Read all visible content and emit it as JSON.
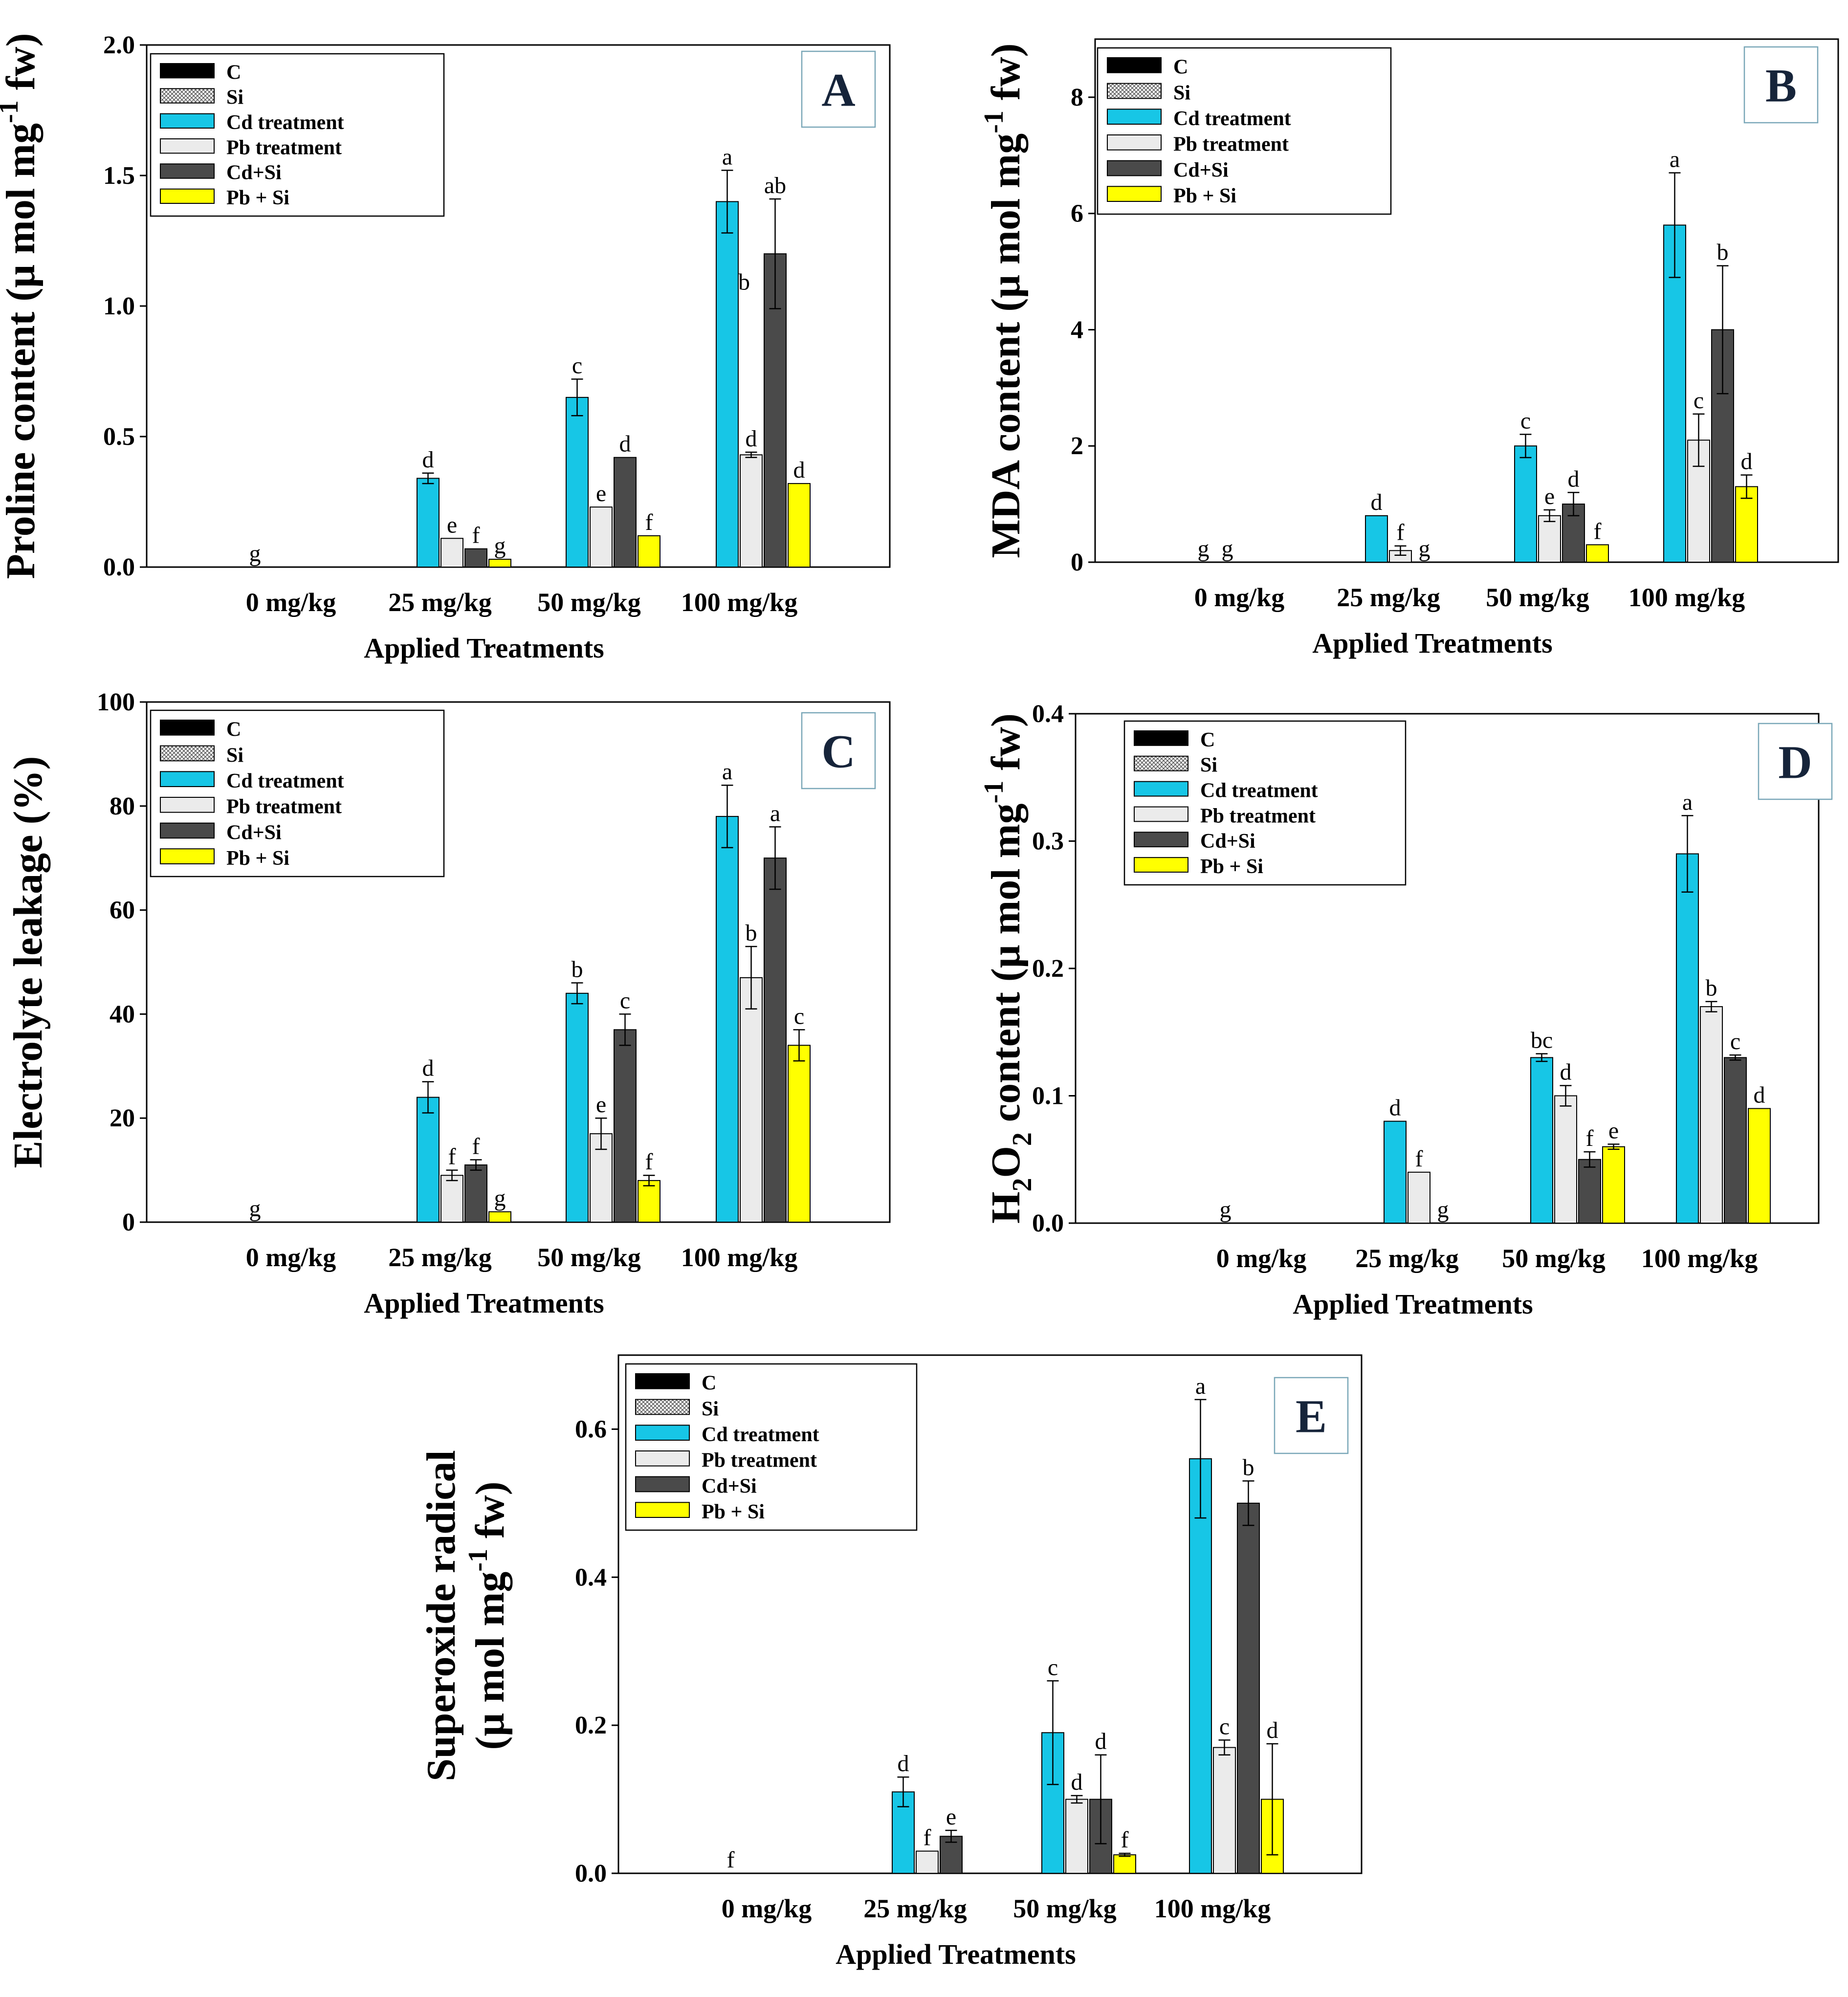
{
  "legend_labels": [
    "C",
    "Si",
    "Cd treatment",
    "Pb treatment",
    "Cd+Si",
    "Pb + Si"
  ],
  "colors": {
    "C": "#000000",
    "Si": "#bdbdbd",
    "Cd treatment": "#17c6e6",
    "Pb treatment": "#ebebeb",
    "Cd+Si": "#4a4a4a",
    "Pb + Si": "#ffff00"
  },
  "chart_data": [
    {
      "type": "bar",
      "panel": "A",
      "ylabel_main": "Proline content (μ mol mg",
      "ylabel_sup": "-1",
      "ylabel_tail": " fw)",
      "xlabel": "Applied Treatments",
      "categories": [
        "0 mg/kg",
        "25 mg/kg",
        "50 mg/kg",
        "100 mg/kg"
      ],
      "ylim": [
        0,
        2.0
      ],
      "ytick_values": [
        0,
        0.5,
        1.0,
        1.5,
        2.0
      ],
      "ytick_labels": [
        "0.0",
        "0.5",
        "1.0",
        "1.5",
        "2.0"
      ],
      "series": [
        {
          "name": "C",
          "values": [
            0,
            null,
            null,
            null
          ],
          "errors": [
            0,
            0,
            0,
            0
          ],
          "letters": [
            "",
            "",
            "",
            ""
          ]
        },
        {
          "name": "Si",
          "values": [
            0,
            null,
            null,
            null
          ],
          "errors": [
            0,
            0,
            0,
            0
          ],
          "letters": [
            "g",
            "",
            "",
            ""
          ]
        },
        {
          "name": "Cd treatment",
          "values": [
            null,
            0.34,
            0.65,
            1.4
          ],
          "errors": [
            0,
            0.02,
            0.07,
            0.12
          ],
          "letters": [
            "",
            "d",
            "c",
            "a"
          ]
        },
        {
          "name": "Pb treatment",
          "values": [
            null,
            0.11,
            0.23,
            0.43
          ],
          "errors": [
            0,
            0,
            0,
            0.01
          ],
          "letters": [
            "",
            "e",
            "e",
            "d"
          ]
        },
        {
          "name": "Cd+Si",
          "values": [
            null,
            0.07,
            0.42,
            1.2
          ],
          "errors": [
            0,
            0,
            0,
            0.21
          ],
          "letters": [
            "",
            "f",
            "d",
            "ab"
          ]
        },
        {
          "name": "Pb + Si",
          "values": [
            null,
            0.03,
            0.12,
            0.32
          ],
          "errors": [
            0,
            0,
            0,
            0
          ],
          "letters": [
            "",
            "g",
            "f",
            "d"
          ]
        }
      ],
      "extra_letters": [
        {
          "category": 3,
          "text": "b",
          "value": 1.1
        }
      ]
    },
    {
      "type": "bar",
      "panel": "B",
      "ylabel_main": "MDA content (μ mol mg",
      "ylabel_sup": "-1",
      "ylabel_tail": " fw)",
      "xlabel": "Applied Treatments",
      "categories": [
        "0 mg/kg",
        "25 mg/kg",
        "50 mg/kg",
        "100 mg/kg"
      ],
      "ylim": [
        0,
        9
      ],
      "ytick_values": [
        0,
        2,
        4,
        6,
        8
      ],
      "ytick_labels": [
        "0",
        "2",
        "4",
        "6",
        "8"
      ],
      "series": [
        {
          "name": "C",
          "values": [
            0,
            null,
            null,
            null
          ],
          "errors": [
            0,
            0,
            0,
            0
          ],
          "letters": [
            "",
            "",
            "",
            ""
          ]
        },
        {
          "name": "Si",
          "values": [
            0,
            null,
            null,
            null
          ],
          "errors": [
            0,
            0,
            0,
            0
          ],
          "letters": [
            "g",
            "",
            "",
            ""
          ]
        },
        {
          "name": "Cd treatment",
          "values": [
            0,
            0.8,
            2.0,
            5.8
          ],
          "errors": [
            0,
            0,
            0.2,
            0.9
          ],
          "letters": [
            "g",
            "d",
            "c",
            "a"
          ]
        },
        {
          "name": "Pb treatment",
          "values": [
            null,
            0.2,
            0.8,
            2.1
          ],
          "errors": [
            0,
            0.08,
            0.1,
            0.45
          ],
          "letters": [
            "",
            "f",
            "e",
            "c"
          ]
        },
        {
          "name": "Cd+Si",
          "values": [
            null,
            0,
            1.0,
            4.0
          ],
          "errors": [
            0,
            0,
            0.2,
            1.1
          ],
          "letters": [
            "",
            "g",
            "d",
            "b"
          ]
        },
        {
          "name": "Pb + Si",
          "values": [
            null,
            null,
            0.3,
            1.3
          ],
          "errors": [
            0,
            0,
            0,
            0.2
          ],
          "letters": [
            "",
            "",
            "f",
            "d"
          ]
        }
      ],
      "extra_letters": []
    },
    {
      "type": "bar",
      "panel": "C",
      "ylabel_main": "Electrolyte leakage (%)",
      "ylabel_sup": "",
      "ylabel_tail": "",
      "xlabel": "Applied Treatments",
      "categories": [
        "0 mg/kg",
        "25 mg/kg",
        "50 mg/kg",
        "100 mg/kg"
      ],
      "ylim": [
        0,
        100
      ],
      "ytick_values": [
        0,
        20,
        40,
        60,
        80,
        100
      ],
      "ytick_labels": [
        "0",
        "20",
        "40",
        "60",
        "80",
        "100"
      ],
      "series": [
        {
          "name": "C",
          "values": [
            0,
            null,
            null,
            null
          ],
          "errors": [
            0,
            0,
            0,
            0
          ],
          "letters": [
            "",
            "",
            "",
            ""
          ]
        },
        {
          "name": "Si",
          "values": [
            0,
            null,
            null,
            null
          ],
          "errors": [
            0,
            0,
            0,
            0
          ],
          "letters": [
            "g",
            "",
            "",
            ""
          ]
        },
        {
          "name": "Cd treatment",
          "values": [
            null,
            24,
            44,
            78
          ],
          "errors": [
            0,
            3,
            2,
            6
          ],
          "letters": [
            "",
            "d",
            "b",
            "a"
          ]
        },
        {
          "name": "Pb treatment",
          "values": [
            null,
            9,
            17,
            47
          ],
          "errors": [
            0,
            1,
            3,
            6
          ],
          "letters": [
            "",
            "f",
            "e",
            "b"
          ]
        },
        {
          "name": "Cd+Si",
          "values": [
            null,
            11,
            37,
            70
          ],
          "errors": [
            0,
            1,
            3,
            6
          ],
          "letters": [
            "",
            "f",
            "c",
            "a"
          ]
        },
        {
          "name": "Pb + Si",
          "values": [
            null,
            2,
            8,
            34
          ],
          "errors": [
            0,
            0,
            1,
            3
          ],
          "letters": [
            "",
            "g",
            "f",
            "c"
          ]
        }
      ],
      "extra_letters": []
    },
    {
      "type": "bar",
      "panel": "D",
      "ylabel_main": "H",
      "ylabel_sub": "2",
      "ylabel_mid": "O",
      "ylabel_sub2": "2",
      "ylabel_rest": " content (μ mol mg",
      "ylabel_sup": "-1",
      "ylabel_tail": " fw)",
      "xlabel": "Applied Treatments",
      "categories": [
        "0 mg/kg",
        "25 mg/kg",
        "50 mg/kg",
        "100 mg/kg"
      ],
      "ylim": [
        0,
        0.4
      ],
      "ytick_values": [
        0,
        0.1,
        0.2,
        0.3,
        0.4
      ],
      "ytick_labels": [
        "0.0",
        "0.1",
        "0.2",
        "0.3",
        "0.4"
      ],
      "series": [
        {
          "name": "C",
          "values": [
            0,
            null,
            null,
            null
          ],
          "errors": [
            0,
            0,
            0,
            0
          ],
          "letters": [
            "",
            "",
            "",
            ""
          ]
        },
        {
          "name": "Si",
          "values": [
            0,
            null,
            null,
            null
          ],
          "errors": [
            0,
            0,
            0,
            0
          ],
          "letters": [
            "g",
            "",
            "",
            ""
          ]
        },
        {
          "name": "Cd treatment",
          "values": [
            null,
            0.08,
            0.13,
            0.29
          ],
          "errors": [
            0,
            0,
            0.003,
            0.03
          ],
          "letters": [
            "",
            "d",
            "bc",
            "a"
          ]
        },
        {
          "name": "Pb treatment",
          "values": [
            null,
            0.04,
            0.1,
            0.17
          ],
          "errors": [
            0,
            0,
            0.008,
            0.004
          ],
          "letters": [
            "",
            "f",
            "d",
            "b"
          ]
        },
        {
          "name": "Cd+Si",
          "values": [
            null,
            0,
            0.05,
            0.13
          ],
          "errors": [
            0,
            0,
            0.006,
            0.002
          ],
          "letters": [
            "",
            "g",
            "f",
            "c"
          ]
        },
        {
          "name": "Pb + Si",
          "values": [
            null,
            null,
            0.06,
            0.09
          ],
          "errors": [
            0,
            0,
            0.002,
            0
          ],
          "letters": [
            "",
            "",
            "e",
            "d"
          ]
        }
      ],
      "extra_letters": []
    },
    {
      "type": "bar",
      "panel": "E",
      "ylabel_line1": "Superoxide radical",
      "ylabel_main": "(μ mol mg",
      "ylabel_sup": "-1",
      "ylabel_tail": " fw)",
      "xlabel": "Applied Treatments",
      "categories": [
        "0 mg/kg",
        "25 mg/kg",
        "50 mg/kg",
        "100 mg/kg"
      ],
      "ylim": [
        0,
        0.7
      ],
      "ytick_values": [
        0,
        0.2,
        0.4,
        0.6
      ],
      "ytick_labels": [
        "0.0",
        "0.2",
        "0.4",
        "0.6"
      ],
      "series": [
        {
          "name": "C",
          "values": [
            0,
            null,
            null,
            null
          ],
          "errors": [
            0,
            0,
            0,
            0
          ],
          "letters": [
            "",
            "",
            "",
            ""
          ]
        },
        {
          "name": "Si",
          "values": [
            0,
            null,
            null,
            null
          ],
          "errors": [
            0,
            0,
            0,
            0
          ],
          "letters": [
            "f",
            "",
            "",
            ""
          ]
        },
        {
          "name": "Cd treatment",
          "values": [
            null,
            0.11,
            0.19,
            0.56
          ],
          "errors": [
            0,
            0.02,
            0.07,
            0.08
          ],
          "letters": [
            "",
            "d",
            "c",
            "a"
          ]
        },
        {
          "name": "Pb treatment",
          "values": [
            null,
            0.03,
            0.1,
            0.17
          ],
          "errors": [
            0,
            0,
            0.005,
            0.01
          ],
          "letters": [
            "",
            "f",
            "d",
            "c"
          ]
        },
        {
          "name": "Cd+Si",
          "values": [
            null,
            0.05,
            0.1,
            0.5
          ],
          "errors": [
            0,
            0.008,
            0.06,
            0.03
          ],
          "letters": [
            "",
            "e",
            "d",
            "b"
          ]
        },
        {
          "name": "Pb + Si",
          "values": [
            null,
            null,
            0.025,
            0.1
          ],
          "errors": [
            0,
            0,
            0.002,
            0.075
          ],
          "letters": [
            "",
            "",
            "f",
            "d"
          ]
        }
      ],
      "extra_letters": []
    }
  ]
}
